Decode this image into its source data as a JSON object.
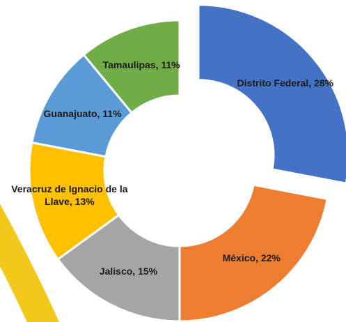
{
  "chart_data": {
    "type": "pie",
    "values": [
      28,
      22,
      15,
      13,
      11,
      11
    ],
    "value_labels": [
      "Distrito Federal, 28%",
      "México, 22%",
      "Jalisco, 15%",
      "Veracruz de Ignacio de la Llave, 13%",
      "Guanajuato, 11%",
      "Tamaulipas, 11%"
    ],
    "colors": [
      "#4472c4",
      "#ed7d31",
      "#a5a5a5",
      "#ffc000",
      "#5b9bd5",
      "#70ad47"
    ]
  }
}
